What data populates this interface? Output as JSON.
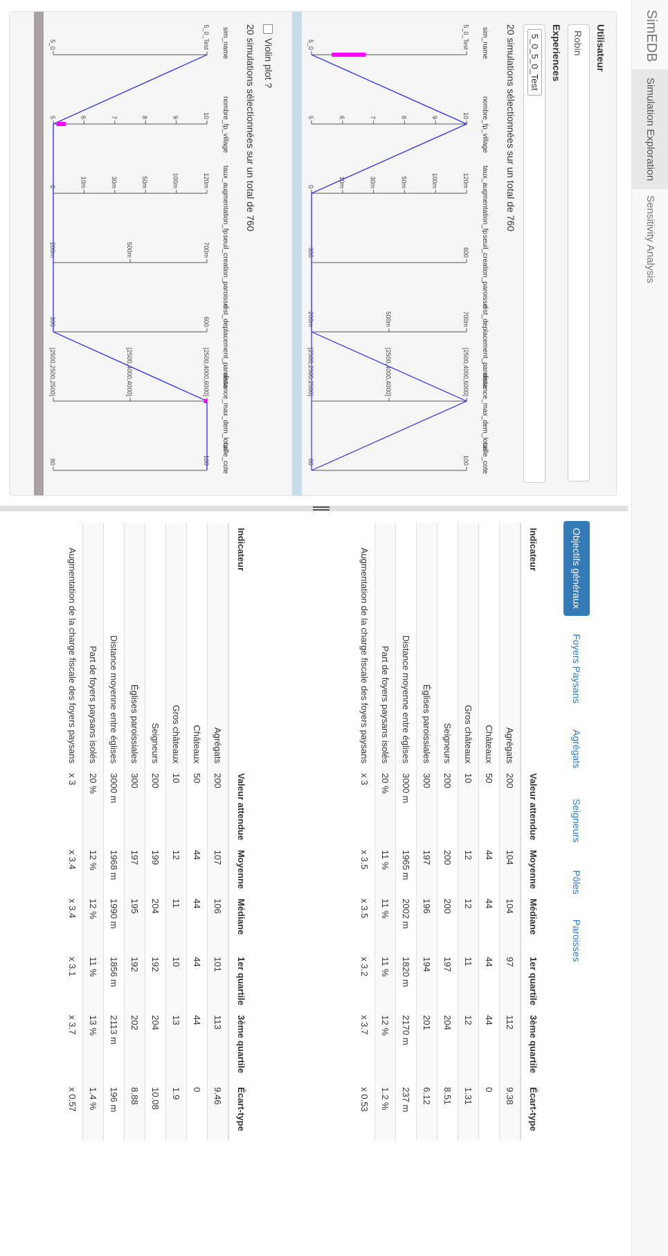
{
  "navbar": {
    "brand": "SimEDB",
    "tabs": [
      "Simulation Exploration",
      "Sensitivity Analysis"
    ],
    "active_tab": "Simulation Exploration"
  },
  "sidebar": {
    "user_label": "Utilisateur",
    "user_value": "Robin",
    "experiences_label": "Experiences",
    "experience_tag": "5_0_5_0_Test",
    "selection_text": "20 simulations sélectionnées sur un total de 760",
    "violin_label": "Violin plot ?",
    "violin_checked": false,
    "selection_text_2": "20 simulations sélectionnées sur un total de 760"
  },
  "parcoords": [
    {
      "axes": [
        {
          "name": "sim_name",
          "ticks": [
            "5_0_Test",
            "5_0"
          ]
        },
        {
          "name": "nombre_fp_village",
          "ticks": [
            "10",
            "9",
            "8",
            "7",
            "6",
            "5"
          ]
        },
        {
          "name": "taux_augmentation_fp",
          "ticks": [
            "120m",
            "100m",
            "50m",
            "30m",
            "10m",
            "0"
          ]
        },
        {
          "name": "seuil_creation_paroisse",
          "ticks": [
            "600",
            "300"
          ]
        },
        {
          "name": "dist_deplacement_paroisse",
          "ticks": [
            "700m",
            "500m",
            "200m"
          ]
        },
        {
          "name": "distance_max_dem_local",
          "ticks": [
            "[2500,4000,6000]",
            "[2500,4000,4000]",
            "[2500,2500,2500]"
          ]
        },
        {
          "name": "taille_cote",
          "ticks": [
            "100",
            "80"
          ]
        }
      ],
      "line_values": [
        0,
        10,
        0,
        300,
        200,
        0,
        80
      ],
      "line_values_2": [
        0,
        5,
        0,
        300,
        200,
        0,
        80
      ]
    },
    {
      "axes": [
        {
          "name": "sim_name",
          "ticks": [
            "5_0_Test",
            "5_0"
          ]
        },
        {
          "name": "nombre_fp_village",
          "ticks": [
            "10",
            "9",
            "8",
            "7",
            "6",
            "5"
          ]
        },
        {
          "name": "taux_augmentation_fp",
          "ticks": [
            "120m",
            "100m",
            "50m",
            "30m",
            "10m",
            "0"
          ]
        },
        {
          "name": "seuil_creation_paroisse",
          "ticks": [
            "700m",
            "500m",
            "200m"
          ]
        },
        {
          "name": "dist_deplacement_paroisse",
          "ticks": [
            "600",
            "300"
          ]
        },
        {
          "name": "distance_max_dem_local",
          "ticks": [
            "[2500,4000,6000]",
            "[2500,4000,4000]",
            "[2500,2500,2500]"
          ]
        },
        {
          "name": "taille_cote",
          "ticks": [
            "100",
            "80"
          ]
        }
      ]
    }
  ],
  "objectives": {
    "tabs": [
      "Objectifs généraux",
      "Foyers Paysans",
      "Agrégats",
      "Seigneurs",
      "Pôles",
      "Paroisses"
    ],
    "active_tab": "Objectifs généraux"
  },
  "table1": {
    "headers": [
      "Indicateur",
      "Valeur attendue",
      "Moyenne",
      "Médiane",
      "1er quartile",
      "3ème quartile",
      "Écart-type"
    ],
    "rows": [
      [
        "Agrégats",
        "200",
        "104",
        "104",
        "97",
        "112",
        "9.38"
      ],
      [
        "Châteaux",
        "50",
        "44",
        "44",
        "44",
        "44",
        "0"
      ],
      [
        "Gros châteaux",
        "10",
        "12",
        "12",
        "11",
        "12",
        "1.31"
      ],
      [
        "Seigneurs",
        "200",
        "200",
        "200",
        "197",
        "204",
        "8.51"
      ],
      [
        "Églises paroissiales",
        "300",
        "197",
        "196",
        "194",
        "201",
        "6.12"
      ],
      [
        "Distance moyenne entre églises",
        "3000 m",
        "1965 m",
        "2002 m",
        "1820 m",
        "2170 m",
        "237 m"
      ],
      [
        "Part de foyers paysans isolés",
        "20 %",
        "11 %",
        "11 %",
        "11 %",
        "12 %",
        "1.2 %"
      ],
      [
        "Augmentation de la charge fiscale des foyers paysans",
        "x 3",
        "x 3.5",
        "x 3.5",
        "x 3.2",
        "x 3.7",
        "x 0.53"
      ]
    ]
  },
  "table2": {
    "headers": [
      "Indicateur",
      "Valeur attendue",
      "Moyenne",
      "Médiane",
      "1er quartile",
      "3ème quartile",
      "Écart-type"
    ],
    "rows": [
      [
        "Agrégats",
        "200",
        "107",
        "106",
        "101",
        "113",
        "9.46"
      ],
      [
        "Châteaux",
        "50",
        "44",
        "44",
        "44",
        "44",
        "0"
      ],
      [
        "Gros châteaux",
        "10",
        "12",
        "11",
        "10",
        "13",
        "1.9"
      ],
      [
        "Seigneurs",
        "200",
        "199",
        "204",
        "192",
        "204",
        "10.08"
      ],
      [
        "Églises paroissiales",
        "300",
        "197",
        "195",
        "192",
        "202",
        "8.88"
      ],
      [
        "Distance moyenne entre églises",
        "3000 m",
        "1968 m",
        "1990 m",
        "1856 m",
        "2113 m",
        "196 m"
      ],
      [
        "Part de foyers paysans isolés",
        "20 %",
        "12 %",
        "12 %",
        "11 %",
        "13 %",
        "1.4 %"
      ],
      [
        "Augmentation de la charge fiscale des foyers paysans",
        "x 3",
        "x 3.4",
        "x 3.4",
        "x 3.1",
        "x 3.7",
        "x 0.57"
      ]
    ]
  },
  "colors": {
    "accent": "#337ab7",
    "line": "#3333ff",
    "brush": "#ff00ff",
    "pc1_band": "#c4dde8",
    "pc2_band": "#aaa2a2"
  }
}
